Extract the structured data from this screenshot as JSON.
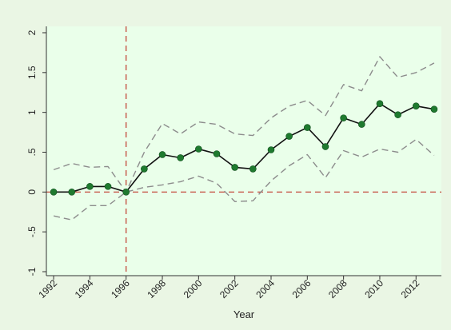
{
  "colors": {
    "background": "#eaf6e4",
    "plot_background": "#eaffea",
    "axis": "#333333",
    "reference_line": "#c0392b",
    "estimate_line": "#111111",
    "estimate_marker": "#1f7a2f",
    "ci_line": "#8c8c8c"
  },
  "chart_data": {
    "type": "line",
    "title": "",
    "xlabel": "Year",
    "ylabel": "",
    "xlim": [
      1991.6,
      2013.4
    ],
    "ylim": [
      -1.05,
      2.08
    ],
    "x_ticks": [
      1992,
      1994,
      1996,
      1998,
      2000,
      2002,
      2004,
      2006,
      2008,
      2010,
      2012
    ],
    "x_tick_labels": [
      "1992",
      "1994",
      "1996",
      "1998",
      "2000",
      "2002",
      "2004",
      "2006",
      "2008",
      "2010",
      "2012"
    ],
    "y_ticks": [
      -1,
      -0.5,
      0,
      0.5,
      1,
      1.5,
      2
    ],
    "y_tick_labels": [
      "-1",
      "-.5",
      "0",
      ".5",
      "1",
      "1.5",
      "2"
    ],
    "y_tick_labels_rotated": true,
    "x_tick_labels_rotated": true,
    "grid": false,
    "legend": "none",
    "x": [
      1992,
      1993,
      1994,
      1995,
      1996,
      1997,
      1998,
      1999,
      2000,
      2001,
      2002,
      2003,
      2004,
      2005,
      2006,
      2007,
      2008,
      2009,
      2010,
      2011,
      2012,
      2013
    ],
    "series": [
      {
        "role": "estimate",
        "style": "solid with markers",
        "values": [
          0.0,
          0.0,
          0.07,
          0.07,
          0.0,
          0.29,
          0.47,
          0.43,
          0.54,
          0.48,
          0.31,
          0.29,
          0.53,
          0.7,
          0.81,
          0.57,
          0.93,
          0.85,
          1.11,
          0.97,
          1.08,
          1.04
        ]
      },
      {
        "role": "upper_ci",
        "style": "dashed",
        "values": [
          0.28,
          0.36,
          0.31,
          0.32,
          0.0,
          0.5,
          0.86,
          0.73,
          0.88,
          0.85,
          0.73,
          0.71,
          0.93,
          1.08,
          1.15,
          0.96,
          1.35,
          1.27,
          1.7,
          1.44,
          1.5,
          1.62
        ]
      },
      {
        "role": "lower_ci",
        "style": "dashed",
        "values": [
          -0.3,
          -0.35,
          -0.17,
          -0.17,
          0.0,
          0.06,
          0.09,
          0.13,
          0.2,
          0.11,
          -0.12,
          -0.11,
          0.14,
          0.33,
          0.47,
          0.18,
          0.52,
          0.44,
          0.54,
          0.5,
          0.66,
          0.46
        ]
      }
    ],
    "reference_lines": {
      "horizontal_y": 0,
      "vertical_x": 1996,
      "style": "dashed"
    }
  }
}
